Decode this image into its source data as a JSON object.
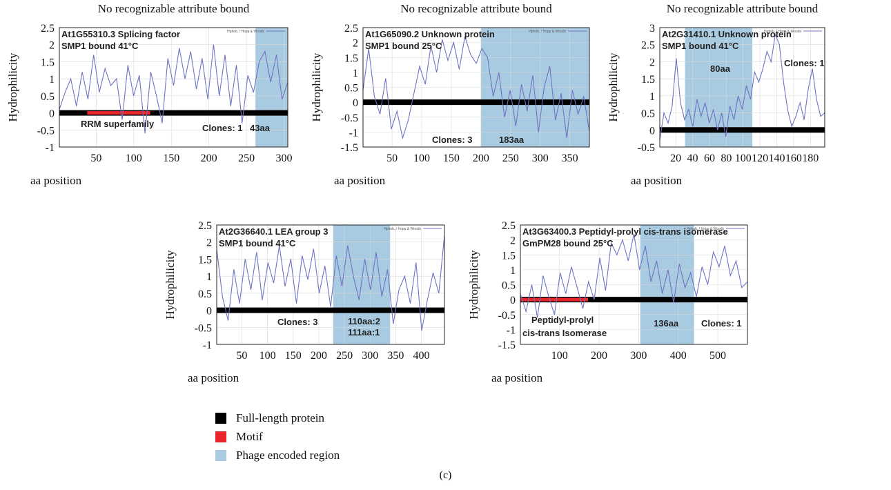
{
  "colors": {
    "full_length": "#000000",
    "motif": "#e8262a",
    "phage": "#a8cbe2",
    "trace": "#6f73c2",
    "grid": "#d9d9d9",
    "frame": "#222222"
  },
  "legend": {
    "items": [
      {
        "label": "Full-length protein",
        "color": "#000000"
      },
      {
        "label": "Motif",
        "color": "#e8262a"
      },
      {
        "label": "Phage encoded region",
        "color": "#a8cbe2"
      }
    ]
  },
  "panel_label": "(c)",
  "chart_data": [
    {
      "type": "line",
      "title": "No recognizable attribute bound",
      "ylabel": "Hydrophilicity",
      "xlabel": "aa position",
      "xlim": [
        1,
        305
      ],
      "ylim": [
        -1,
        2.5
      ],
      "xticks": [
        50,
        100,
        150,
        200,
        250,
        300
      ],
      "yticks": [
        -1,
        -0.5,
        0,
        0.5,
        1,
        1.5,
        2,
        2.5
      ],
      "header": [
        "At1G55310.3 Splicing factor",
        "SMP1 bound 41°C"
      ],
      "series_legend": "Hphob. / Hopp & Woods",
      "profile_y": [
        0.1,
        0.6,
        1.0,
        0.2,
        1.2,
        0.4,
        1.7,
        0.6,
        1.3,
        0.8,
        1.0,
        -0.2,
        1.4,
        0.5,
        1.1,
        -0.6,
        1.2,
        0.5,
        -0.3,
        1.6,
        0.8,
        1.9,
        1.0,
        1.8,
        0.7,
        1.6,
        0.4,
        2.0,
        0.5,
        1.7,
        0.2,
        1.4,
        -0.3,
        1.1,
        0.6,
        1.5,
        1.8,
        0.9,
        1.7,
        0.4,
        0.9
      ],
      "protein": [
        1,
        305
      ],
      "motifs": [
        {
          "range": [
            38,
            122
          ],
          "label": "RRM superfamily"
        }
      ],
      "phage": {
        "range": [
          262,
          305
        ],
        "label": "43aa"
      },
      "clones": "Clones: 1"
    },
    {
      "type": "line",
      "title": "No recognizable attribute bound",
      "ylabel": "Hydrophilicity",
      "xlabel": "aa position",
      "xlim": [
        1,
        383
      ],
      "ylim": [
        -1.5,
        2.5
      ],
      "xticks": [
        50,
        100,
        150,
        200,
        250,
        300,
        350
      ],
      "yticks": [
        -1.5,
        -1,
        -0.5,
        0,
        0.5,
        1,
        1.5,
        2,
        2.5
      ],
      "header": [
        "At1G65090.2 Unknown protein",
        "SMP1 bound 25°C"
      ],
      "series_legend": "Hphob. / Hopp & Woods",
      "profile_y": [
        0.4,
        1.8,
        0.2,
        -0.4,
        0.8,
        -0.9,
        -0.3,
        -1.2,
        -0.6,
        0.3,
        1.2,
        0.6,
        1.9,
        1.0,
        2.1,
        1.4,
        2.0,
        1.1,
        2.2,
        1.6,
        1.3,
        1.8,
        1.5,
        0.2,
        1.0,
        -0.5,
        0.4,
        -0.8,
        0.6,
        -0.3,
        0.9,
        -1.0,
        0.5,
        1.2,
        -0.6,
        0.3,
        -1.2,
        0.4,
        -0.4,
        0.2,
        -1.0
      ],
      "protein": [
        1,
        383
      ],
      "motifs": [],
      "phage": {
        "range": [
          200,
          383
        ],
        "label": "183aa"
      },
      "clones": "Clones: 3"
    },
    {
      "type": "line",
      "title": "No recognizable attribute bound",
      "ylabel": "Hydrophilicity",
      "xlabel": "aa position",
      "xlim": [
        1,
        197
      ],
      "ylim": [
        -0.5,
        3
      ],
      "xticks": [
        20,
        40,
        60,
        80,
        100,
        120,
        140,
        160,
        180
      ],
      "yticks": [
        -0.5,
        0,
        0.5,
        1,
        1.5,
        2,
        2.5,
        3
      ],
      "header": [
        "At2G31410.1 Unknown protein",
        "SMP1 bound 41°C"
      ],
      "series_legend": "Hphob. / Hopp & Woods",
      "profile_y": [
        -0.3,
        0.5,
        0.2,
        0.7,
        2.1,
        0.8,
        0.3,
        0.6,
        0.1,
        0.9,
        0.4,
        0.8,
        0.2,
        0.6,
        0.0,
        0.5,
        -0.2,
        0.7,
        0.3,
        1.0,
        0.6,
        1.3,
        0.9,
        1.7,
        1.4,
        1.8,
        2.3,
        2.0,
        2.8,
        2.5,
        1.4,
        0.6,
        0.1,
        0.4,
        0.8,
        0.3,
        1.2,
        1.8,
        0.9,
        0.4,
        0.5
      ],
      "protein": [
        1,
        197
      ],
      "motifs": [],
      "phage": {
        "range": [
          31,
          111
        ],
        "label": "80aa"
      },
      "clones": "Clones: 1"
    },
    {
      "type": "line",
      "title": "",
      "ylabel": "Hydrophilicity",
      "xlabel": "aa position",
      "xlim": [
        1,
        445
      ],
      "ylim": [
        -1,
        2.5
      ],
      "xticks": [
        50,
        100,
        150,
        200,
        250,
        300,
        350,
        400
      ],
      "yticks": [
        -1,
        -0.5,
        0,
        0.5,
        1,
        1.5,
        2,
        2.5
      ],
      "header": [
        "At2G36640.1 LEA group 3",
        "SMP1 bound 41°C"
      ],
      "series_legend": "Hphob. / Hopp & Woods",
      "profile_y": [
        1.8,
        0.4,
        -0.3,
        1.2,
        0.2,
        1.5,
        0.6,
        1.7,
        0.3,
        1.4,
        0.8,
        1.9,
        0.7,
        1.5,
        0.2,
        1.6,
        0.9,
        1.8,
        0.5,
        1.3,
        0.1,
        1.6,
        0.7,
        1.9,
        1.0,
        0.3,
        1.5,
        0.6,
        1.7,
        0.4,
        1.2,
        -0.4,
        0.6,
        1.0,
        0.2,
        1.4,
        -0.6,
        0.3,
        1.1,
        0.5,
        2.2
      ],
      "protein": [
        1,
        445
      ],
      "motifs": [],
      "phage": {
        "range": [
          228,
          339
        ],
        "label_lines": [
          "110aa:2",
          "111aa:1"
        ]
      },
      "clones": "Clones: 3"
    },
    {
      "type": "line",
      "title": "",
      "ylabel": "Hydrophilicity",
      "xlabel": "aa position",
      "xlim": [
        1,
        575
      ],
      "ylim": [
        -1.5,
        2.5
      ],
      "xticks": [
        100,
        200,
        300,
        400,
        500
      ],
      "yticks": [
        -1.5,
        -1,
        -0.5,
        0,
        0.5,
        1,
        1.5,
        2,
        2.5
      ],
      "header": [
        "At3G63400.3 Peptidyl-prolyl cis-trans isomerase",
        "GmPM28 bound  25°C"
      ],
      "series_legend": "Hphob. / Hopp & Woods",
      "profile_y": [
        0.2,
        -0.4,
        0.5,
        -0.6,
        0.8,
        0.1,
        -0.5,
        0.9,
        0.2,
        1.1,
        0.4,
        -0.3,
        0.6,
        0.0,
        1.4,
        0.3,
        1.9,
        1.5,
        2.0,
        1.3,
        2.2,
        1.0,
        1.8,
        0.6,
        1.3,
        0.2,
        1.0,
        -0.1,
        1.2,
        0.4,
        0.9,
        0.1,
        1.1,
        0.5,
        1.6,
        1.1,
        1.8,
        0.8,
        1.3,
        0.4,
        0.6
      ],
      "protein": [
        1,
        575
      ],
      "motifs": [
        {
          "range": [
            1,
            172
          ],
          "label_lines": [
            "Peptidyl-prolyl",
            "cis-trans Isomerase"
          ]
        }
      ],
      "phage": {
        "range": [
          304,
          440
        ],
        "label": "136aa"
      },
      "clones": "Clones: 1"
    }
  ]
}
